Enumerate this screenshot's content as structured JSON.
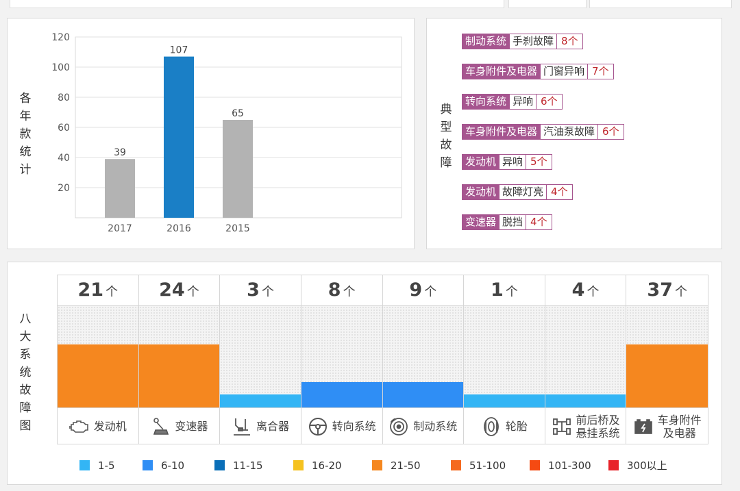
{
  "chart_data": {
    "type": "bar",
    "ylabel": "各年款统计",
    "categories": [
      "2017",
      "2016",
      "2015"
    ],
    "values": [
      39,
      107,
      65
    ],
    "yticks": [
      20,
      40,
      60,
      80,
      100,
      120
    ],
    "ylim": [
      0,
      120
    ],
    "bar_colors": [
      "#b3b3b3",
      "#1a7fc6",
      "#b3b3b3"
    ],
    "grid": true
  },
  "faults": {
    "title": "典型故障",
    "items": [
      {
        "system": "制动系统",
        "symptom": "手刹故障",
        "count": "8个"
      },
      {
        "system": "车身附件及电器",
        "symptom": "门窗异响",
        "count": "7个"
      },
      {
        "system": "转向系统",
        "symptom": "异响",
        "count": "6个"
      },
      {
        "system": "车身附件及电器",
        "symptom": "汽油泵故障",
        "count": "6个"
      },
      {
        "system": "发动机",
        "symptom": "异响",
        "count": "5个"
      },
      {
        "system": "发动机",
        "symptom": "故障灯亮",
        "count": "4个"
      },
      {
        "system": "变速器",
        "symptom": "脱挡",
        "count": "4个"
      }
    ]
  },
  "systems": {
    "title": "八大系统故障图",
    "unit": "个",
    "items": [
      {
        "name": "发动机",
        "count": 21,
        "color": "#f5871f",
        "icon": "engine-icon"
      },
      {
        "name": "变速器",
        "count": 24,
        "color": "#f5871f",
        "icon": "gear-shift-icon"
      },
      {
        "name": "离合器",
        "count": 3,
        "color": "#33b5f5",
        "icon": "clutch-icon"
      },
      {
        "name": "转向系统",
        "count": 8,
        "color": "#2f8ef5",
        "icon": "steering-wheel-icon"
      },
      {
        "name": "制动系统",
        "count": 9,
        "color": "#2f8ef5",
        "icon": "brake-disc-icon"
      },
      {
        "name": "轮胎",
        "count": 1,
        "color": "#33b5f5",
        "icon": "tire-icon"
      },
      {
        "name": "前后桥及\n悬挂系统",
        "count": 4,
        "color": "#33b5f5",
        "icon": "axle-icon"
      },
      {
        "name": "车身附件\n及电器",
        "count": 37,
        "color": "#f5871f",
        "icon": "battery-icon"
      }
    ]
  },
  "legend": [
    {
      "label": "1-5",
      "color": "#33b5f5"
    },
    {
      "label": "6-10",
      "color": "#2f8ef5"
    },
    {
      "label": "11-15",
      "color": "#0a6fb8"
    },
    {
      "label": "16-20",
      "color": "#f5c21f"
    },
    {
      "label": "21-50",
      "color": "#f5871f"
    },
    {
      "label": "51-100",
      "color": "#f56a1f"
    },
    {
      "label": "101-300",
      "color": "#f54a12"
    },
    {
      "label": "300以上",
      "color": "#e8232a"
    }
  ]
}
